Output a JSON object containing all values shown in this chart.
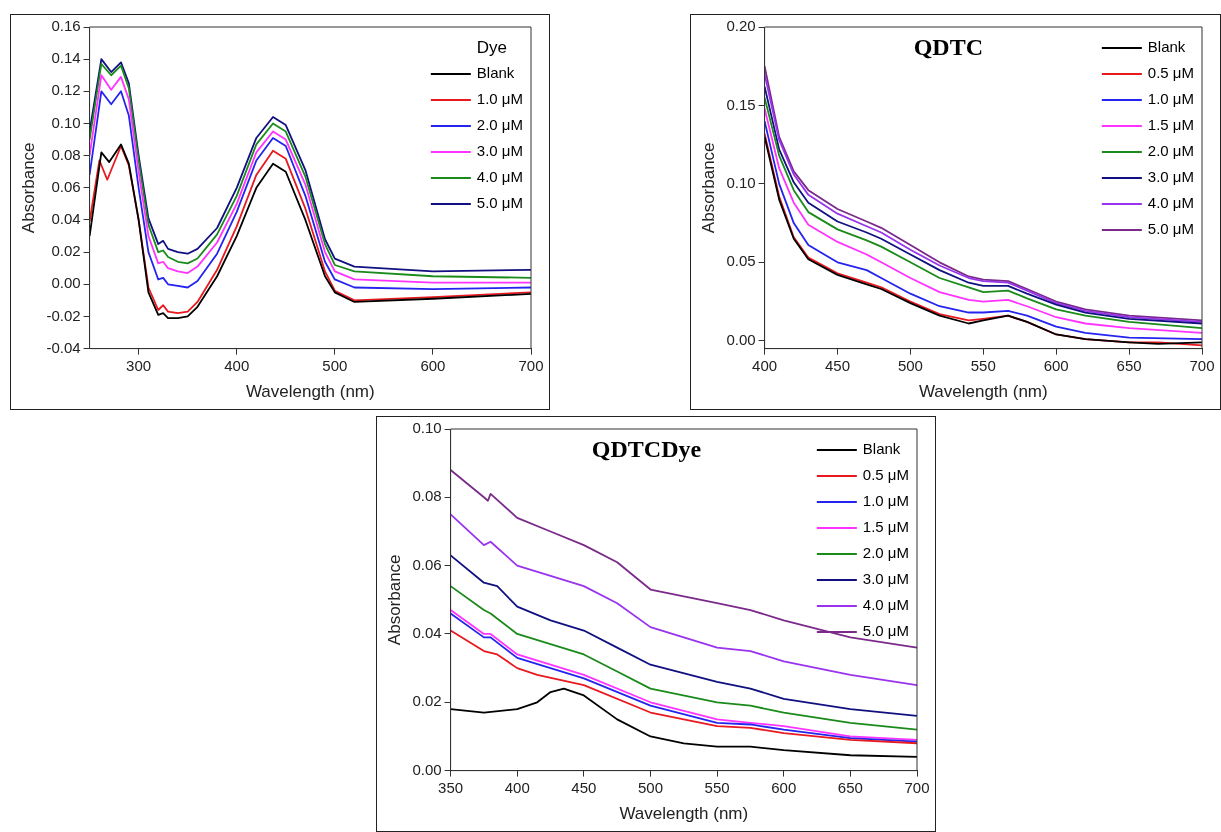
{
  "chart_data": [
    {
      "type": "line",
      "xlabel": "Wavelength (nm)",
      "ylabel": "Absorbance",
      "legend_title": "Dye",
      "legend": "top right",
      "xlim": [
        250,
        700
      ],
      "xticks": [
        300,
        400,
        500,
        600,
        700
      ],
      "ylim": [
        -0.04,
        0.16
      ],
      "yticks": [
        -0.04,
        -0.02,
        {
          "value": 0,
          "label": "0.00"
        },
        0.02,
        0.04,
        0.06,
        0.08,
        {
          "value": 0.1,
          "label": "0.10"
        },
        0.12,
        0.14,
        0.16
      ],
      "series": [
        {
          "name": "Blank",
          "color": "#000000",
          "x": [
            250,
            262,
            270,
            282,
            290,
            300,
            310,
            320,
            325,
            330,
            340,
            350,
            360,
            380,
            400,
            420,
            437,
            450,
            470,
            490,
            500,
            520,
            600,
            700
          ],
          "values": [
            0.03,
            0.082,
            0.076,
            0.087,
            0.075,
            0.04,
            -0.005,
            -0.019,
            -0.018,
            -0.021,
            -0.021,
            -0.02,
            -0.014,
            0.005,
            0.03,
            0.06,
            0.075,
            0.07,
            0.04,
            0.005,
            -0.005,
            -0.011,
            -0.009,
            -0.006
          ]
        },
        {
          "name": "1.0 μM",
          "color": "#e8191f",
          "x": [
            250,
            260,
            268,
            282,
            290,
            300,
            310,
            320,
            325,
            330,
            340,
            350,
            360,
            380,
            400,
            420,
            437,
            450,
            470,
            490,
            500,
            520,
            600,
            700
          ],
          "values": [
            0.039,
            0.077,
            0.065,
            0.086,
            0.074,
            0.04,
            -0.002,
            -0.016,
            -0.013,
            -0.017,
            -0.018,
            -0.017,
            -0.011,
            0.009,
            0.036,
            0.068,
            0.083,
            0.078,
            0.047,
            0.008,
            -0.004,
            -0.01,
            -0.008,
            -0.005
          ]
        },
        {
          "name": "2.0 μM",
          "color": "#2424ee",
          "x": [
            250,
            262,
            272,
            282,
            290,
            300,
            310,
            320,
            325,
            330,
            340,
            350,
            360,
            380,
            400,
            420,
            437,
            450,
            470,
            490,
            500,
            520,
            600,
            700
          ],
          "values": [
            0.068,
            0.12,
            0.112,
            0.12,
            0.105,
            0.06,
            0.02,
            0.003,
            0.004,
            0.0,
            -0.001,
            -0.002,
            0.002,
            0.019,
            0.045,
            0.077,
            0.091,
            0.086,
            0.055,
            0.014,
            0.003,
            -0.002,
            -0.003,
            -0.002
          ]
        },
        {
          "name": "3.0 μM",
          "color": "#ff33ff",
          "x": [
            250,
            262,
            272,
            282,
            290,
            300,
            310,
            320,
            325,
            330,
            340,
            350,
            360,
            380,
            400,
            420,
            437,
            450,
            470,
            490,
            500,
            520,
            600,
            700
          ],
          "values": [
            0.08,
            0.13,
            0.121,
            0.129,
            0.115,
            0.07,
            0.03,
            0.013,
            0.014,
            0.01,
            0.008,
            0.007,
            0.011,
            0.026,
            0.05,
            0.082,
            0.095,
            0.09,
            0.062,
            0.02,
            0.008,
            0.003,
            0.001,
            0.001
          ]
        },
        {
          "name": "4.0 μM",
          "color": "#1a8a1a",
          "x": [
            250,
            262,
            272,
            282,
            290,
            300,
            310,
            320,
            325,
            330,
            340,
            350,
            360,
            380,
            400,
            420,
            437,
            450,
            470,
            490,
            500,
            520,
            600,
            700
          ],
          "values": [
            0.09,
            0.137,
            0.13,
            0.136,
            0.122,
            0.077,
            0.037,
            0.02,
            0.021,
            0.017,
            0.014,
            0.013,
            0.016,
            0.031,
            0.055,
            0.087,
            0.1,
            0.095,
            0.067,
            0.025,
            0.012,
            0.008,
            0.005,
            0.004
          ]
        },
        {
          "name": "5.0 μM",
          "color": "#101080",
          "x": [
            250,
            262,
            272,
            282,
            290,
            300,
            310,
            320,
            325,
            330,
            340,
            350,
            360,
            380,
            400,
            420,
            437,
            450,
            470,
            490,
            500,
            520,
            600,
            700
          ],
          "values": [
            0.095,
            0.14,
            0.132,
            0.138,
            0.125,
            0.08,
            0.041,
            0.025,
            0.027,
            0.022,
            0.02,
            0.019,
            0.022,
            0.035,
            0.06,
            0.091,
            0.104,
            0.099,
            0.071,
            0.028,
            0.016,
            0.011,
            0.008,
            0.009
          ]
        }
      ]
    },
    {
      "type": "line",
      "title": "QDTC",
      "xlabel": "Wavelength (nm)",
      "ylabel": "Absorbance",
      "legend": "top right",
      "xlim": [
        400,
        700
      ],
      "xticks": [
        400,
        450,
        500,
        550,
        600,
        650,
        700
      ],
      "ylim": [
        -0.005,
        0.2
      ],
      "yticks": [
        {
          "value": 0,
          "label": "0.00"
        },
        0.05,
        {
          "value": 0.1,
          "label": "0.10"
        },
        0.15,
        {
          "value": 0.2,
          "label": "0.20"
        }
      ],
      "series": [
        {
          "name": "Blank",
          "color": "#000000",
          "x": [
            400,
            410,
            420,
            430,
            450,
            470,
            480,
            500,
            520,
            540,
            550,
            567,
            580,
            600,
            620,
            650,
            670,
            700
          ],
          "values": [
            0.13,
            0.09,
            0.065,
            0.052,
            0.042,
            0.036,
            0.033,
            0.024,
            0.016,
            0.011,
            0.013,
            0.016,
            0.012,
            0.004,
            0.001,
            -0.001,
            -0.002,
            -0.001
          ]
        },
        {
          "name": "0.5 μM",
          "color": "#e8191f",
          "x": [
            400,
            410,
            420,
            430,
            450,
            470,
            480,
            500,
            520,
            540,
            550,
            567,
            580,
            600,
            620,
            650,
            670,
            700
          ],
          "values": [
            0.132,
            0.092,
            0.066,
            0.053,
            0.043,
            0.037,
            0.034,
            0.025,
            0.017,
            0.013,
            0.014,
            0.016,
            0.012,
            0.004,
            0.001,
            -0.001,
            -0.001,
            -0.003
          ]
        },
        {
          "name": "1.0 μM",
          "color": "#2424ee",
          "x": [
            400,
            410,
            420,
            430,
            450,
            470,
            480,
            500,
            520,
            540,
            550,
            567,
            580,
            600,
            620,
            650,
            700
          ],
          "values": [
            0.14,
            0.1,
            0.075,
            0.061,
            0.05,
            0.045,
            0.04,
            0.03,
            0.022,
            0.018,
            0.018,
            0.019,
            0.016,
            0.009,
            0.005,
            0.002,
            0.001
          ]
        },
        {
          "name": "1.5 μM",
          "color": "#ff33ff",
          "x": [
            400,
            410,
            420,
            430,
            450,
            470,
            480,
            500,
            520,
            540,
            550,
            567,
            580,
            600,
            620,
            650,
            700
          ],
          "values": [
            0.148,
            0.11,
            0.088,
            0.074,
            0.063,
            0.055,
            0.05,
            0.04,
            0.031,
            0.026,
            0.025,
            0.026,
            0.022,
            0.015,
            0.011,
            0.008,
            0.005
          ]
        },
        {
          "name": "2.0 μM",
          "color": "#1a8a1a",
          "x": [
            400,
            410,
            420,
            430,
            450,
            470,
            480,
            500,
            520,
            540,
            550,
            567,
            580,
            600,
            620,
            650,
            700
          ],
          "values": [
            0.155,
            0.118,
            0.096,
            0.082,
            0.071,
            0.064,
            0.06,
            0.05,
            0.04,
            0.034,
            0.031,
            0.032,
            0.027,
            0.02,
            0.016,
            0.012,
            0.008
          ]
        },
        {
          "name": "3.0 μM",
          "color": "#101080",
          "x": [
            400,
            410,
            420,
            430,
            450,
            470,
            480,
            500,
            520,
            540,
            550,
            567,
            580,
            600,
            620,
            650,
            700
          ],
          "values": [
            0.162,
            0.122,
            0.101,
            0.088,
            0.076,
            0.069,
            0.065,
            0.055,
            0.045,
            0.037,
            0.035,
            0.035,
            0.03,
            0.023,
            0.018,
            0.014,
            0.011
          ]
        },
        {
          "name": "4.0 μM",
          "color": "#9933ee",
          "x": [
            400,
            410,
            420,
            430,
            450,
            470,
            480,
            500,
            520,
            540,
            550,
            567,
            580,
            600,
            620,
            650,
            700
          ],
          "values": [
            0.17,
            0.128,
            0.106,
            0.093,
            0.081,
            0.073,
            0.069,
            0.058,
            0.048,
            0.04,
            0.038,
            0.037,
            0.032,
            0.024,
            0.019,
            0.015,
            0.012
          ]
        },
        {
          "name": "5.0 μM",
          "color": "#7b2a8a",
          "x": [
            400,
            410,
            420,
            430,
            450,
            470,
            480,
            500,
            520,
            540,
            550,
            567,
            580,
            600,
            620,
            650,
            700
          ],
          "values": [
            0.175,
            0.13,
            0.108,
            0.096,
            0.084,
            0.076,
            0.072,
            0.061,
            0.05,
            0.041,
            0.039,
            0.038,
            0.033,
            0.025,
            0.02,
            0.016,
            0.013
          ]
        }
      ]
    },
    {
      "type": "line",
      "title": "QDTCDye",
      "xlabel": "Wavelength (nm)",
      "ylabel": "Absorbance",
      "legend": "top right",
      "xlim": [
        350,
        700
      ],
      "xticks": [
        350,
        400,
        450,
        500,
        550,
        600,
        650,
        700
      ],
      "ylim": [
        0,
        0.1
      ],
      "yticks": [
        {
          "value": 0,
          "label": "0.00"
        },
        0.02,
        0.04,
        0.06,
        0.08,
        {
          "value": 0.1,
          "label": "0.10"
        }
      ],
      "series": [
        {
          "name": "Blank",
          "color": "#000000",
          "x": [
            350,
            375,
            400,
            415,
            425,
            435,
            450,
            475,
            500,
            525,
            550,
            575,
            600,
            650,
            700
          ],
          "values": [
            0.018,
            0.017,
            0.018,
            0.02,
            0.023,
            0.024,
            0.022,
            0.015,
            0.01,
            0.008,
            0.007,
            0.007,
            0.006,
            0.0045,
            0.004
          ]
        },
        {
          "name": "0.5 μM",
          "color": "#e8191f",
          "x": [
            350,
            375,
            385,
            400,
            415,
            450,
            500,
            550,
            575,
            600,
            650,
            700
          ],
          "values": [
            0.041,
            0.035,
            0.034,
            0.03,
            0.028,
            0.025,
            0.017,
            0.013,
            0.0125,
            0.011,
            0.009,
            0.008
          ]
        },
        {
          "name": "1.0 μM",
          "color": "#2424ee",
          "x": [
            350,
            375,
            380,
            400,
            425,
            450,
            500,
            550,
            575,
            600,
            650,
            700
          ],
          "values": [
            0.046,
            0.039,
            0.039,
            0.033,
            0.03,
            0.027,
            0.019,
            0.014,
            0.0135,
            0.012,
            0.0095,
            0.0085
          ]
        },
        {
          "name": "1.5 μM",
          "color": "#ff33ff",
          "x": [
            350,
            375,
            380,
            400,
            425,
            450,
            500,
            550,
            575,
            600,
            650,
            700
          ],
          "values": [
            0.047,
            0.04,
            0.04,
            0.034,
            0.031,
            0.028,
            0.02,
            0.015,
            0.014,
            0.013,
            0.01,
            0.009
          ]
        },
        {
          "name": "2.0 μM",
          "color": "#1a8a1a",
          "x": [
            350,
            375,
            380,
            400,
            425,
            450,
            475,
            500,
            550,
            575,
            600,
            650,
            700
          ],
          "values": [
            0.054,
            0.047,
            0.046,
            0.04,
            0.037,
            0.034,
            0.029,
            0.024,
            0.02,
            0.019,
            0.017,
            0.014,
            0.012
          ]
        },
        {
          "name": "3.0 μM",
          "color": "#101080",
          "x": [
            350,
            375,
            385,
            400,
            425,
            450,
            475,
            500,
            550,
            575,
            600,
            650,
            700
          ],
          "values": [
            0.063,
            0.055,
            0.054,
            0.048,
            0.044,
            0.041,
            0.036,
            0.031,
            0.026,
            0.024,
            0.021,
            0.018,
            0.016
          ]
        },
        {
          "name": "4.0 μM",
          "color": "#9933ee",
          "x": [
            350,
            375,
            380,
            400,
            425,
            450,
            475,
            500,
            525,
            550,
            575,
            600,
            650,
            700
          ],
          "values": [
            0.075,
            0.066,
            0.067,
            0.06,
            0.057,
            0.054,
            0.049,
            0.042,
            0.039,
            0.036,
            0.035,
            0.032,
            0.028,
            0.025
          ]
        },
        {
          "name": "5.0 μM",
          "color": "#7b2a8a",
          "x": [
            350,
            375,
            378,
            380,
            400,
            425,
            450,
            475,
            500,
            525,
            550,
            575,
            600,
            650,
            700
          ],
          "values": [
            0.088,
            0.08,
            0.079,
            0.081,
            0.074,
            0.07,
            0.066,
            0.061,
            0.053,
            0.051,
            0.049,
            0.047,
            0.044,
            0.039,
            0.036
          ]
        }
      ]
    }
  ]
}
